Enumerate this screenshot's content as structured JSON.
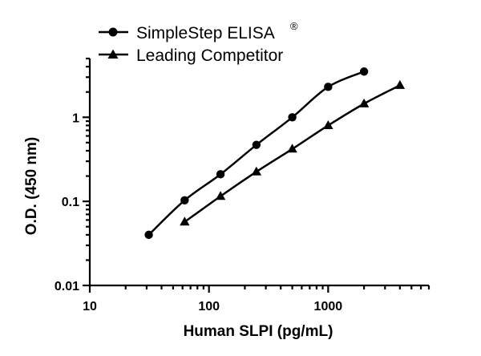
{
  "chart_data": {
    "type": "line",
    "title": "",
    "xlabel": "Human SLPI (pg/mL)",
    "ylabel": "O.D. (450 nm)",
    "x_scale": "log",
    "y_scale": "log",
    "xlim": [
      10,
      7000
    ],
    "ylim": [
      0.01,
      5
    ],
    "x_ticks": [
      10,
      100,
      1000
    ],
    "x_tick_labels": [
      "10",
      "100",
      "1000"
    ],
    "y_ticks": [
      0.01,
      0.1,
      1
    ],
    "y_tick_labels": [
      "0.01",
      "0.1",
      "1"
    ],
    "grid": false,
    "legend_position": "top-left",
    "series": [
      {
        "name": "SimpleStep ELISA®",
        "label_text": "SimpleStep ELISA",
        "label_sup": "®",
        "marker": "circle",
        "color": "#000000",
        "x": [
          31.25,
          62.5,
          125,
          250,
          500,
          1000,
          2000
        ],
        "y": [
          0.04,
          0.103,
          0.21,
          0.47,
          1.0,
          2.3,
          3.5
        ]
      },
      {
        "name": "Leading Competitor",
        "label_text": "Leading Competitor",
        "marker": "triangle",
        "color": "#000000",
        "x": [
          62.5,
          125,
          250,
          500,
          1000,
          2000,
          4000
        ],
        "y": [
          0.057,
          0.115,
          0.225,
          0.42,
          0.8,
          1.45,
          2.4
        ]
      }
    ]
  }
}
